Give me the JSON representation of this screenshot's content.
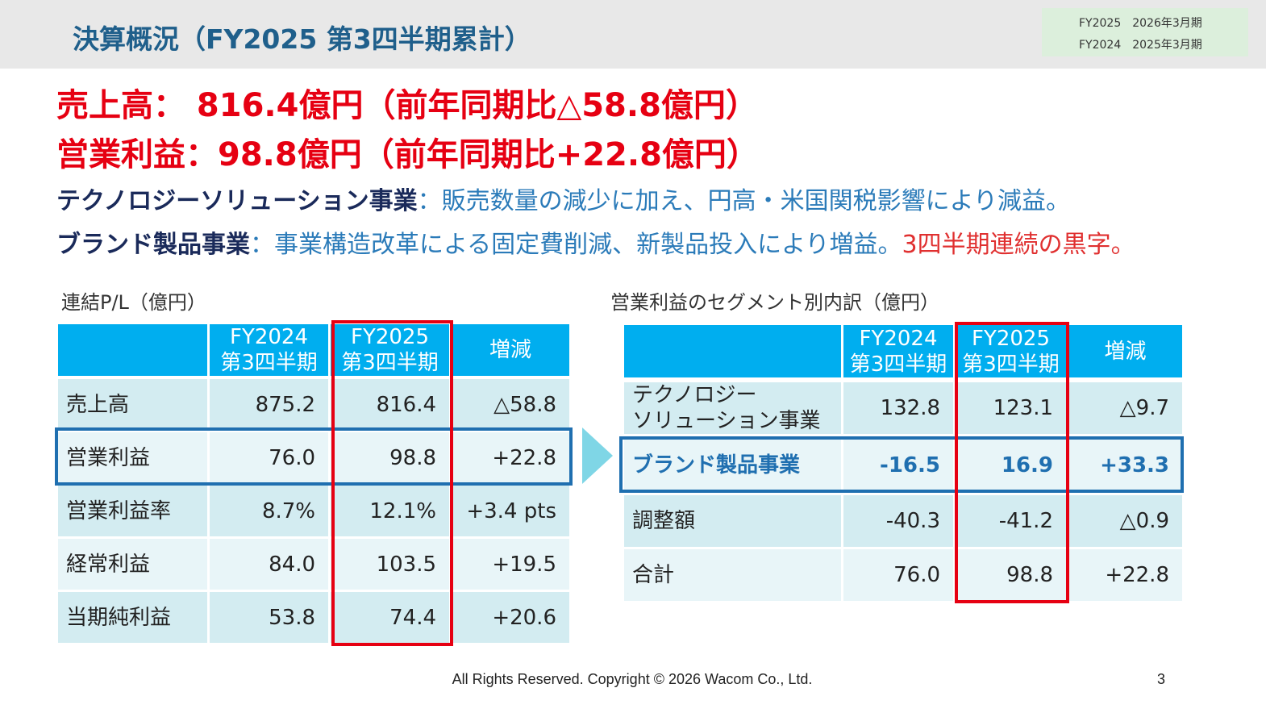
{
  "header": {
    "title": "決算概況（FY2025 第3四半期累計）",
    "legend": [
      "FY2025　2026年3月期",
      "FY2024　2025年3月期"
    ]
  },
  "headline": [
    "売上高： 816.4億円（前年同期比△58.8億円）",
    "営業利益：98.8億円（前年同期比+22.8億円）"
  ],
  "comments": [
    {
      "label": "テクノロジーソリューション事業",
      "text": "：販売数量の減少に加え、円高・米国関税影響により減益。"
    },
    {
      "label": "ブランド製品事業",
      "text": "：事業構造改革による固定費削減、新製品投入により増益。",
      "highlight": "3四半期連続の黒字。"
    }
  ],
  "pl": {
    "caption": "連結P/L（億円）",
    "headers": [
      [
        "FY2024",
        "第3四半期"
      ],
      [
        "FY2025",
        "第3四半期"
      ],
      [
        "増減"
      ]
    ],
    "rows": [
      [
        "売上高",
        "875.2",
        "816.4",
        "△58.8"
      ],
      [
        "営業利益",
        "76.0",
        "98.8",
        "+22.8"
      ],
      [
        "営業利益率",
        "8.7%",
        "12.1%",
        "+3.4 pts"
      ],
      [
        "経常利益",
        "84.0",
        "103.5",
        "+19.5"
      ],
      [
        "当期純利益",
        "53.8",
        "74.4",
        "+20.6"
      ]
    ]
  },
  "segment": {
    "caption": "営業利益のセグメント別内訳（億円）",
    "headers": [
      [
        "FY2024",
        "第3四半期"
      ],
      [
        "FY2025",
        "第3四半期"
      ],
      [
        "増減"
      ]
    ],
    "rows": [
      [
        [
          "テクノロジー",
          "ソリューション事業"
        ],
        "132.8",
        "123.1",
        "△9.7"
      ],
      [
        "ブランド製品事業",
        "-16.5",
        "16.9",
        "+33.3"
      ],
      [
        "調整額",
        "-40.3",
        "-41.2",
        "△0.9"
      ],
      [
        "合計",
        "76.0",
        "98.8",
        "+22.8"
      ]
    ]
  },
  "footer": {
    "copyright": "All Rights Reserved. Copyright © 2026 Wacom Co., Ltd.",
    "page": "3"
  }
}
